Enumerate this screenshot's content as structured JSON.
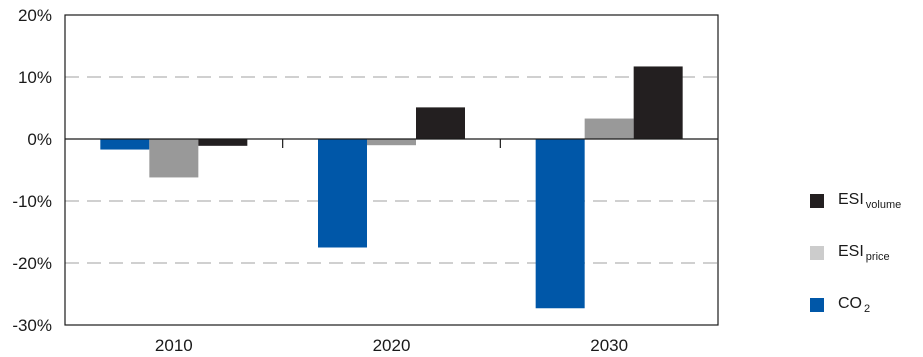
{
  "chart_data": {
    "type": "bar",
    "categories": [
      "2010",
      "2020",
      "2030"
    ],
    "series": [
      {
        "name": "CO2",
        "color": "#0057a8",
        "values": [
          -1.7,
          -17.5,
          -27.3
        ]
      },
      {
        "name": "ESI price",
        "color": "#999999",
        "values": [
          -6.2,
          -1.0,
          3.3
        ]
      },
      {
        "name": "ESI volume",
        "color": "#231f20",
        "values": [
          -1.1,
          5.1,
          11.7
        ]
      }
    ],
    "ylim": [
      -30,
      20
    ],
    "yticks": [
      20,
      10,
      0,
      -10,
      -20,
      -30
    ],
    "ytick_labels": [
      "20%",
      "10%",
      "0%",
      "-10%",
      "-20%",
      "-30%"
    ],
    "grid": true,
    "legend_placement": "right"
  },
  "legend": {
    "items": [
      {
        "base": "ESI",
        "sub": "volume",
        "color": "#231f20"
      },
      {
        "base": "ESI",
        "sub": "price",
        "color": "#cccccc"
      },
      {
        "base": "CO",
        "sub": "2",
        "color": "#0057a8"
      }
    ]
  }
}
